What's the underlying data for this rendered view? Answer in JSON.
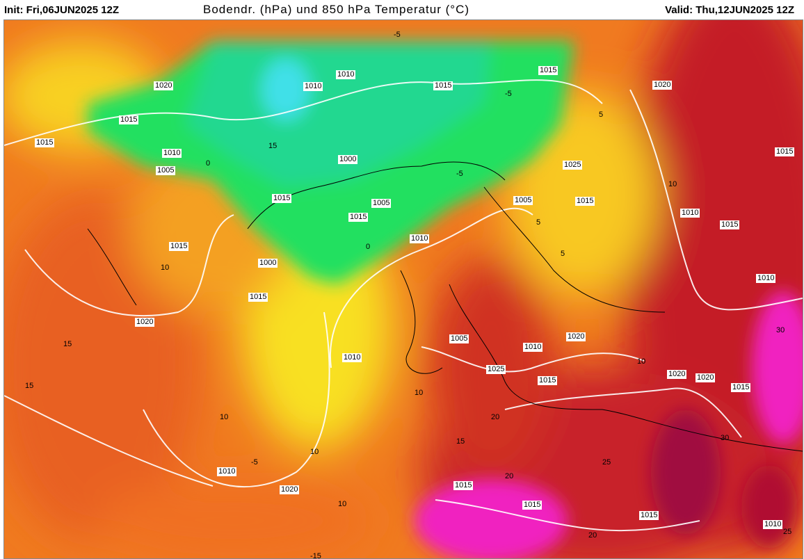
{
  "header": {
    "init": "Init: Fri,06JUN2025 12Z",
    "title": "Bodendr. (hPa) und 850 hPa Temperatur (°C)",
    "valid": "Valid: Thu,12JUN2025 12Z"
  },
  "colors": {
    "cold_cyan": "#40e0e8",
    "green": "#20e060",
    "yellow": "#f8e020",
    "orange": "#f08020",
    "red": "#d03020",
    "dark_red": "#b01030",
    "magenta": "#f020c0",
    "isobar": "#ffffff",
    "isotherm": "#000000"
  },
  "isobar_labels": [
    "1020",
    "1010",
    "1010",
    "1015",
    "1015",
    "1015",
    "1010",
    "1005",
    "1000",
    "1015",
    "1005",
    "1015",
    "1010",
    "1005",
    "1015",
    "1025",
    "1020",
    "1015",
    "1010",
    "1015",
    "1010",
    "1015",
    "1000",
    "1015",
    "1020",
    "1010",
    "1005",
    "1010",
    "1020",
    "1025",
    "1015",
    "1020",
    "1020",
    "1015",
    "1010",
    "1020",
    "1015",
    "1015",
    "1015",
    "1015",
    "1010"
  ],
  "isotherm_labels": [
    "-5",
    "-5",
    "0",
    "5",
    "5",
    "10",
    "10",
    "15",
    "15",
    "10",
    "-5",
    "10",
    "10",
    "15",
    "20",
    "25",
    "20",
    "30",
    "25",
    "10",
    "-5",
    "0",
    "-15",
    "10",
    "5",
    "15",
    "20",
    "30"
  ]
}
